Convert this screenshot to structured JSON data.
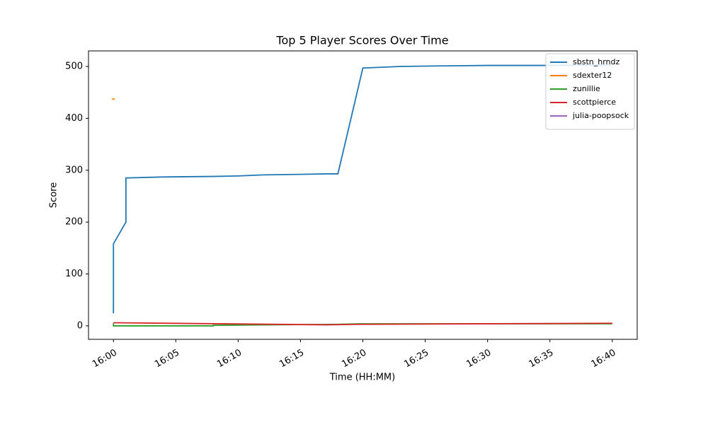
{
  "chart_data": {
    "type": "line",
    "title": "Top 5 Player Scores Over Time",
    "x_label": "Time (HH:MM)",
    "y_label": "Score",
    "xlim": [
      "15:58",
      "16:42"
    ],
    "xticks": [
      "16:00",
      "16:05",
      "16:10",
      "16:15",
      "16:20",
      "16:25",
      "16:30",
      "16:35",
      "16:40"
    ],
    "ylim": [
      -26,
      530
    ],
    "yticks": [
      0,
      100,
      200,
      300,
      400,
      500
    ],
    "grid": false,
    "legend": "upper right",
    "series": [
      {
        "name": "sbstn_hrndz",
        "color": "#1f77b4",
        "x": [
          "16:00",
          "16:00",
          "16:01",
          "16:01",
          "16:04",
          "16:08",
          "16:10",
          "16:12",
          "16:15",
          "16:17",
          "16:18",
          "16:20",
          "16:21",
          "16:23",
          "16:26",
          "16:30",
          "16:35",
          "16:40"
        ],
        "values": [
          24,
          158,
          200,
          285,
          287,
          288,
          289,
          291,
          292,
          293,
          293,
          497,
          498,
          500,
          501,
          502,
          502,
          503
        ]
      },
      {
        "name": "sdexter12",
        "color": "#ff7f0e",
        "x": [
          "16:00"
        ],
        "values": [
          437
        ]
      },
      {
        "name": "zunillie",
        "color": "#2ca02c",
        "x": [
          "16:00",
          "16:00",
          "16:08",
          "16:08",
          "16:18",
          "16:20",
          "16:40"
        ],
        "values": [
          5,
          0,
          0,
          1,
          3,
          4,
          4
        ]
      },
      {
        "name": "scottpierce",
        "color": "#d62728",
        "x": [
          "16:00",
          "16:17",
          "16:20",
          "16:40"
        ],
        "values": [
          6,
          2,
          3,
          5
        ]
      },
      {
        "name": "julia-poopsock",
        "color": "#9467bd",
        "x": [],
        "values": []
      }
    ]
  }
}
